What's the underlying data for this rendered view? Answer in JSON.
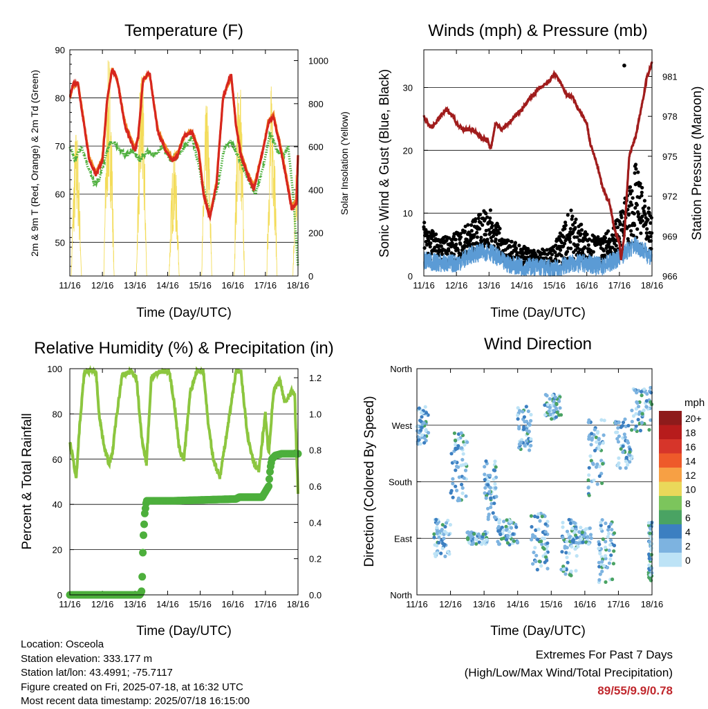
{
  "info": {
    "location": "Location: Osceola",
    "elevation": "Station elevation: 333.177 m",
    "latlon": "Station lat/lon: 43.4991; -75.7117",
    "created": "Figure created on Fri, 2025-07-18, at 16:32 UTC",
    "recent": "Most recent data timestamp: 2025/07/18 16:15:00"
  },
  "extremes": {
    "title": "Extremes For Past 7 Days",
    "subtitle": "(High/Low/Max Wind/Total Precipitation)",
    "values": "89/55/9.9/0.78"
  },
  "colors": {
    "temp2m": "#d7261e",
    "temp9m": "#f28c28",
    "dewpoint": "#4daf3c",
    "solar": "#f3dc5a",
    "wind": "#5b9bd5",
    "gust": "#000000",
    "pressure": "#a01c1c",
    "rh": "#8cc63f",
    "precip": "#4daf3c"
  },
  "chart_data": [
    {
      "type": "line",
      "title": "Temperature (F)",
      "xlabel": "Time (Day/UTC)",
      "ylabel": "2m & 9m T (Red, Orange) & 2m Td (Green)",
      "y2label": "Solar Insolation (Yellow)",
      "xticks": [
        "11/16",
        "12/16",
        "13/16",
        "14/16",
        "15/16",
        "16/16",
        "17/16",
        "18/16"
      ],
      "xlim": [
        0,
        7
      ],
      "ylim": [
        43,
        90
      ],
      "y2lim": [
        0,
        1050
      ],
      "yticks": [
        50,
        60,
        70,
        80,
        90
      ],
      "y2ticks": [
        0,
        200,
        400,
        600,
        800,
        1000
      ],
      "grid": true,
      "series": [
        {
          "key": "t2m",
          "x": [
            0,
            0.1,
            0.25,
            0.4,
            0.6,
            0.8,
            1.0,
            1.15,
            1.3,
            1.45,
            1.7,
            2.0,
            2.1,
            2.25,
            2.45,
            2.7,
            2.95,
            3.15,
            3.3,
            3.5,
            3.75,
            3.95,
            4.1,
            4.3,
            4.5,
            4.7,
            4.95,
            5.1,
            5.25,
            5.45,
            5.65,
            5.95,
            6.1,
            6.25,
            6.45,
            6.65,
            6.8,
            6.95,
            7.0
          ],
          "y": [
            80,
            83,
            83,
            76,
            67,
            64,
            67,
            80,
            86,
            84,
            74,
            69,
            72,
            84,
            85,
            73,
            69,
            67,
            68,
            72,
            73,
            69,
            60,
            55,
            62,
            80,
            85,
            74,
            68,
            64,
            61,
            70,
            75,
            76,
            70,
            63,
            57,
            58,
            68
          ]
        },
        {
          "key": "t9m",
          "x": [
            0,
            0.1,
            0.25,
            0.4,
            0.6,
            0.8,
            1.0,
            1.15,
            1.3,
            1.45,
            1.7,
            2.0,
            2.1,
            2.25,
            2.45,
            2.7,
            2.95,
            3.15,
            3.3,
            3.5,
            3.75,
            3.95,
            4.1,
            4.3,
            4.5,
            4.7,
            4.95,
            5.1,
            5.25,
            5.45,
            5.65,
            5.95,
            6.1,
            6.25,
            6.45,
            6.65,
            6.8,
            6.95,
            7.0
          ],
          "y": [
            80,
            82.5,
            83,
            76.5,
            67.5,
            64.5,
            67.5,
            80,
            86,
            84,
            74.5,
            69.5,
            72,
            84,
            85,
            73.5,
            69.5,
            67.5,
            68.5,
            72,
            73,
            69.5,
            60.5,
            55.5,
            62.5,
            80,
            84.5,
            74.5,
            68.5,
            64.5,
            61.5,
            70,
            75.5,
            76.5,
            70.5,
            63.5,
            57.5,
            58.5,
            68
          ]
        },
        {
          "key": "td2m",
          "x": [
            0,
            0.15,
            0.35,
            0.6,
            0.75,
            0.9,
            1.1,
            1.25,
            1.45,
            1.7,
            1.95,
            2.15,
            2.35,
            2.6,
            2.85,
            3.1,
            3.3,
            3.55,
            3.75,
            3.95,
            4.15,
            4.3,
            4.55,
            4.75,
            4.95,
            5.15,
            5.35,
            5.55,
            5.7,
            5.95,
            6.15,
            6.35,
            6.55,
            6.7,
            6.85,
            6.95,
            7.0
          ],
          "y": [
            70,
            67,
            70,
            65,
            62,
            63,
            68,
            71,
            70,
            68,
            69,
            67,
            69,
            68,
            70,
            67,
            68,
            70,
            72,
            66,
            60,
            56,
            62,
            70,
            71,
            68,
            65,
            62,
            60,
            66,
            73,
            69,
            68,
            70,
            60,
            50,
            45
          ]
        },
        {
          "key": "solar",
          "peaks": [
            0.2,
            1.2,
            2.2,
            3.2,
            4.2,
            5.2,
            6.2,
            7.0
          ],
          "peak_values": [
            700,
            1050,
            1000,
            600,
            820,
            1000,
            920,
            600
          ]
        }
      ]
    },
    {
      "type": "line",
      "title": "Winds (mph) & Pressure (mb)",
      "xlabel": "Time (Day/UTC)",
      "ylabel": "Sonic Wind & Gust (Blue, Black)",
      "y2label": "Station Pressure (Maroon)",
      "xticks": [
        "11/16",
        "12/16",
        "13/16",
        "14/16",
        "15/16",
        "16/16",
        "17/16",
        "18/16"
      ],
      "xlim": [
        0,
        7
      ],
      "ylim": [
        0,
        36
      ],
      "y2lim": [
        966,
        983
      ],
      "yticks": [
        0,
        10,
        20,
        30
      ],
      "y2ticks": [
        966,
        969,
        972,
        975,
        978,
        981
      ],
      "grid": true,
      "series": [
        {
          "key": "pressure",
          "x": [
            0,
            0.1,
            0.2,
            0.3,
            0.5,
            0.7,
            0.9,
            1.0,
            1.2,
            1.5,
            1.7,
            1.95,
            2.05,
            2.2,
            2.4,
            2.6,
            2.8,
            3.0,
            3.3,
            3.5,
            3.8,
            4.0,
            4.2,
            4.4,
            4.55,
            4.75,
            5.0,
            5.1,
            5.3,
            5.5,
            5.7,
            5.85,
            6.0,
            6.05,
            6.15,
            6.3,
            6.5,
            6.7,
            6.85,
            7.0
          ],
          "y": [
            978,
            977.5,
            977.2,
            977.3,
            978,
            978.5,
            978,
            977.5,
            977,
            977,
            976.5,
            976.2,
            975.5,
            977.5,
            977,
            977.5,
            978,
            978.5,
            979.5,
            980,
            980.5,
            981.2,
            980.5,
            979.5,
            979.5,
            978.5,
            977.5,
            976,
            974.5,
            972.5,
            971.5,
            969.5,
            968.5,
            967.2,
            969,
            975,
            976.5,
            979,
            981,
            982
          ]
        },
        {
          "key": "wind_mean",
          "x": [
            0,
            0.5,
            1,
            1.5,
            2,
            2.5,
            3,
            3.5,
            4,
            4.5,
            5,
            5.5,
            6,
            6.5,
            7
          ],
          "y": [
            2.5,
            2,
            2,
            3.5,
            4,
            2,
            1.5,
            1.5,
            1,
            2,
            2,
            1.5,
            3,
            5,
            3
          ]
        },
        {
          "key": "gust_envelope",
          "x": [
            0,
            0.5,
            1,
            1.5,
            2,
            2.5,
            3,
            3.5,
            4,
            4.5,
            5,
            5.5,
            6,
            6.5,
            7
          ],
          "y": [
            9,
            6,
            7,
            9,
            11,
            6,
            5,
            4,
            5,
            11,
            7,
            6,
            10,
            18,
            9
          ]
        }
      ],
      "annotations": [
        {
          "key": "max_gust",
          "x": 6.15,
          "y": 33.5
        }
      ]
    },
    {
      "type": "line",
      "title": "Relative Humidity (%) & Precipitation (in)",
      "xlabel": "Time (Day/UTC)",
      "ylabel": "Percent & Total Rainfall",
      "xticks": [
        "11/16",
        "12/16",
        "13/16",
        "14/16",
        "15/16",
        "16/16",
        "17/16",
        "18/16"
      ],
      "xlim": [
        0,
        7
      ],
      "ylim": [
        0,
        100
      ],
      "y2lim": [
        0,
        1.25
      ],
      "yticks": [
        0,
        20,
        40,
        60,
        80,
        100
      ],
      "y2ticks": [
        0.0,
        0.2,
        0.4,
        0.6,
        0.8,
        1.0,
        1.2
      ],
      "grid": true,
      "series": [
        {
          "key": "rh",
          "x": [
            0,
            0.1,
            0.2,
            0.3,
            0.45,
            0.6,
            0.8,
            0.9,
            1.0,
            1.1,
            1.2,
            1.3,
            1.4,
            1.6,
            1.9,
            2.05,
            2.2,
            2.35,
            2.5,
            2.8,
            3.05,
            3.2,
            3.35,
            3.5,
            3.7,
            3.9,
            4.1,
            4.25,
            4.4,
            4.6,
            4.8,
            5.1,
            5.25,
            5.45,
            5.65,
            5.8,
            6.0,
            6.1,
            6.25,
            6.45,
            6.6,
            6.8,
            6.9,
            7.0
          ],
          "y": [
            67,
            60,
            52,
            75,
            99,
            99,
            99,
            80,
            70,
            63,
            58,
            62,
            75,
            97,
            99,
            95,
            70,
            58,
            96,
            99,
            99,
            85,
            65,
            60,
            90,
            99,
            99,
            75,
            60,
            52,
            70,
            99,
            99,
            70,
            58,
            55,
            80,
            62,
            90,
            95,
            85,
            90,
            88,
            45
          ]
        },
        {
          "key": "precip",
          "x": [
            0,
            2.15,
            2.2,
            2.22,
            2.25,
            2.3,
            2.35,
            2.6,
            3.2,
            5.1,
            5.2,
            5.9,
            6.1,
            6.15,
            6.2,
            6.3,
            6.5,
            7.0
          ],
          "y": [
            0,
            0,
            0.02,
            0.1,
            0.3,
            0.45,
            0.52,
            0.52,
            0.52,
            0.53,
            0.54,
            0.54,
            0.6,
            0.7,
            0.75,
            0.77,
            0.78,
            0.78
          ]
        }
      ]
    },
    {
      "type": "scatter",
      "title": "Wind Direction",
      "xlabel": "Time (Day/UTC)",
      "ylabel": "Direction (Colored By Speed)",
      "xticks": [
        "11/16",
        "12/16",
        "13/16",
        "14/16",
        "15/16",
        "16/16",
        "17/16",
        "18/16"
      ],
      "xlim": [
        0,
        7
      ],
      "ylim": [
        0,
        360
      ],
      "yticks": [
        "North",
        "East",
        "South",
        "West",
        "North"
      ],
      "grid": true,
      "legend": {
        "title": "mph",
        "labels": [
          "20+",
          "18",
          "16",
          "14",
          "12",
          "10",
          "8",
          "6",
          "4",
          "2",
          "0"
        ],
        "colors": [
          "#8e1b1b",
          "#b71c1c",
          "#d6352a",
          "#ee5a2a",
          "#f7a044",
          "#ead85a",
          "#7cc55c",
          "#4aa363",
          "#3c7fc1",
          "#7db3e0",
          "#bde3f6"
        ]
      },
      "clusters": [
        {
          "x": [
            0.0,
            0.35
          ],
          "y": [
            240,
            300
          ]
        },
        {
          "x": [
            1.0,
            1.5
          ],
          "y": [
            150,
            260
          ]
        },
        {
          "x": [
            0.5,
            1.0
          ],
          "y": [
            60,
            120
          ]
        },
        {
          "x": [
            1.5,
            2.1
          ],
          "y": [
            80,
            100
          ]
        },
        {
          "x": [
            2.0,
            2.4
          ],
          "y": [
            120,
            220
          ]
        },
        {
          "x": [
            2.4,
            3.0
          ],
          "y": [
            80,
            120
          ]
        },
        {
          "x": [
            3.0,
            3.4
          ],
          "y": [
            230,
            300
          ]
        },
        {
          "x": [
            3.4,
            3.9
          ],
          "y": [
            40,
            130
          ]
        },
        {
          "x": [
            3.8,
            4.3
          ],
          "y": [
            280,
            320
          ]
        },
        {
          "x": [
            4.3,
            4.8
          ],
          "y": [
            30,
            120
          ]
        },
        {
          "x": [
            4.6,
            5.2
          ],
          "y": [
            80,
            110
          ]
        },
        {
          "x": [
            5.1,
            5.6
          ],
          "y": [
            150,
            280
          ]
        },
        {
          "x": [
            5.4,
            5.9
          ],
          "y": [
            20,
            120
          ]
        },
        {
          "x": [
            5.9,
            6.4
          ],
          "y": [
            200,
            280
          ]
        },
        {
          "x": [
            6.4,
            7.0
          ],
          "y": [
            260,
            330
          ]
        },
        {
          "x": [
            6.9,
            7.0
          ],
          "y": [
            20,
            120
          ]
        }
      ]
    }
  ]
}
